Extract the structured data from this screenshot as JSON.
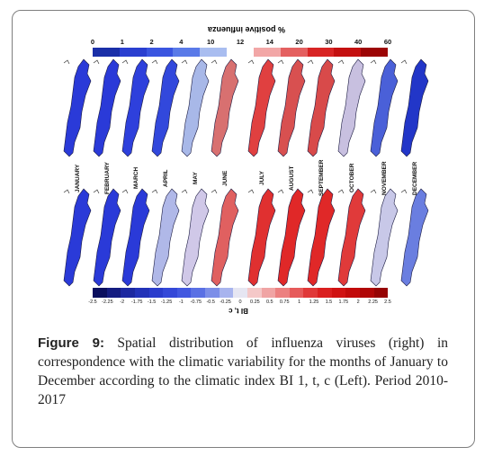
{
  "top_legend": {
    "title": "% positive influenza",
    "ticks": [
      "0",
      "1",
      "2",
      "4",
      "10",
      "12",
      "14",
      "20",
      "30",
      "40",
      "60"
    ],
    "colors": [
      "#1a2fa8",
      "#2a3fd0",
      "#3a55e0",
      "#5a7ae8",
      "#a9bdf0",
      "#ffffff",
      "#f2a7a7",
      "#e46060",
      "#d82424",
      "#c41010",
      "#9c0505"
    ]
  },
  "bottom_legend": {
    "title": "BI t, c",
    "ticks": [
      "-2.5",
      "-2.25",
      "-2",
      "-1.75",
      "-1.5",
      "-1.25",
      "-1",
      "-0.75",
      "-0.5",
      "-0.25",
      "0",
      "0.25",
      "0.5",
      "0.75",
      "1",
      "1.25",
      "1.5",
      "1.75",
      "2",
      "2.25",
      "2.5"
    ],
    "colors": [
      "#0a0f5e",
      "#141c80",
      "#1c28a0",
      "#2232b8",
      "#2a3ccc",
      "#3448d8",
      "#4258e0",
      "#5a70e4",
      "#7c8ee8",
      "#a8b4ee",
      "#e6e6f2",
      "#f4c8c8",
      "#f0a4a4",
      "#ec8080",
      "#e65a5a",
      "#e03838",
      "#da1f1f",
      "#d01212",
      "#c20a0a",
      "#b00606",
      "#960303"
    ]
  },
  "months": [
    "JANUARY",
    "FEBRUARY",
    "MARCH",
    "APRIL",
    "MAY",
    "JUNE",
    "JULY",
    "AUGUST",
    "SEPTEMBER",
    "OCTOBER",
    "NOVEMBER",
    "DECEMBER"
  ],
  "influenza_map_colors": [
    "#2a3ad8",
    "#2a3ad8",
    "#2e40dc",
    "#3248dc",
    "#a8b8e8",
    "#d87070",
    "#e04040",
    "#d85050",
    "#d84a4a",
    "#c8c0e0",
    "#4a60d8",
    "#2236c8"
  ],
  "climate_map_colors": [
    "#2a3ad8",
    "#2a3ad8",
    "#2a3ad8",
    "#b0b8e8",
    "#d0c8e8",
    "#e06060",
    "#e03030",
    "#e02828",
    "#e02828",
    "#e03a3a",
    "#c8c8e8",
    "#6a7ee0"
  ],
  "caption": {
    "label": "Figure 9:",
    "text": " Spatial distribution of influenza viruses (right) in correspondence with the climatic variability for the months of January to December according to the climatic index BI 1, t, c (Left). Period 2010-2017"
  }
}
